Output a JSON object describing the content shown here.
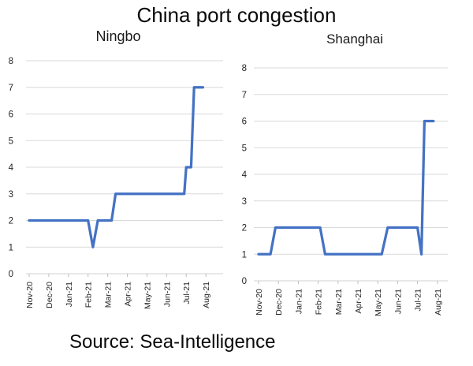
{
  "header": {
    "title": "China port congestion"
  },
  "footer": {
    "source": "Source: Sea-Intelligence"
  },
  "colors": {
    "line": "#4472C4",
    "grid": "#D9D9D9",
    "axis": "#D0D0D0",
    "tick_mark": "#BFBFBF",
    "tick_text": "#262626",
    "title_text": "#0a0a0a"
  },
  "chart_data": [
    {
      "type": "line",
      "title": "Ningbo",
      "x_labels": [
        "Nov-20",
        "Dec-20",
        "Jan-21",
        "Feb-21",
        "Mar-21",
        "Apr-21",
        "May-21",
        "Jun-21",
        "Jul-21",
        "Aug-21"
      ],
      "x_unit": "months since Nov-20 (fractional positions = sub-monthly observations)",
      "xlim": [
        0,
        9.9
      ],
      "y_ticks": [
        0,
        1,
        2,
        3,
        4,
        5,
        6,
        7,
        8
      ],
      "ylim": [
        0,
        8
      ],
      "grid": true,
      "legend": false,
      "series": [
        {
          "name": "Ningbo",
          "points": [
            [
              0,
              2
            ],
            [
              3.0,
              2
            ],
            [
              3.25,
              1
            ],
            [
              3.5,
              2
            ],
            [
              4.2,
              2
            ],
            [
              4.4,
              3
            ],
            [
              7.9,
              3
            ],
            [
              8.0,
              4
            ],
            [
              8.25,
              4
            ],
            [
              8.4,
              7
            ],
            [
              8.85,
              7
            ]
          ]
        }
      ]
    },
    {
      "type": "line",
      "title": "Shanghai",
      "x_labels": [
        "Nov-20",
        "Dec-20",
        "Jan-21",
        "Feb-21",
        "Mar-21",
        "Apr-21",
        "May-21",
        "Jun-21",
        "Jul-21",
        "Aug-21"
      ],
      "x_unit": "months since Nov-20 (fractional positions = sub-monthly observations)",
      "xlim": [
        0,
        9.9
      ],
      "y_ticks": [
        0,
        1,
        2,
        3,
        4,
        5,
        6,
        7,
        8
      ],
      "ylim": [
        0,
        8
      ],
      "grid": true,
      "legend": false,
      "series": [
        {
          "name": "Shanghai",
          "points": [
            [
              0,
              1
            ],
            [
              0.6,
              1
            ],
            [
              0.85,
              2
            ],
            [
              3.1,
              2
            ],
            [
              3.35,
              1
            ],
            [
              6.2,
              1
            ],
            [
              6.5,
              2
            ],
            [
              8.0,
              2
            ],
            [
              8.2,
              1
            ],
            [
              8.35,
              6
            ],
            [
              8.8,
              6
            ]
          ]
        }
      ]
    }
  ]
}
